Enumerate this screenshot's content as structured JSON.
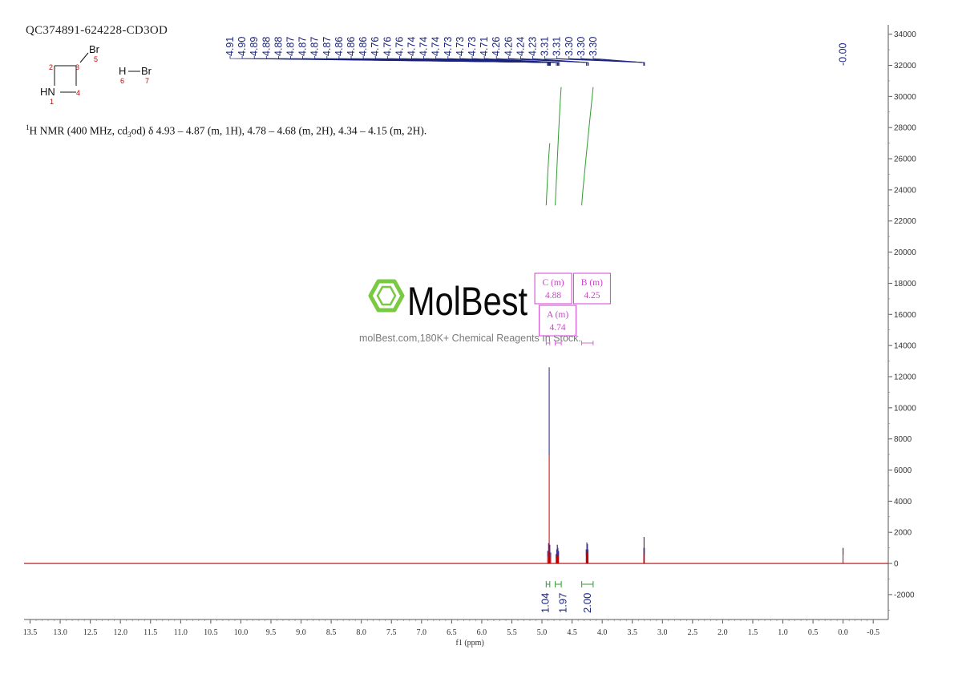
{
  "sample_id": "QC374891-624228-CD3OD",
  "nmr_summary": {
    "prefix_sup": "1",
    "prefix": "H NMR (400 MHz, cd",
    "solvent_sub": "3",
    "body": "od) δ 4.93 – 4.87 (m, 1H), 4.78 – 4.68 (m, 2H), 4.34 – 4.15 (m, 2H)."
  },
  "structure": {
    "atoms": [
      {
        "symbol": "HN",
        "number": "1"
      },
      {
        "symbol": "",
        "number": "2"
      },
      {
        "symbol": "",
        "number": "3"
      },
      {
        "symbol": "",
        "number": "4"
      },
      {
        "symbol": "Br",
        "number": "5"
      },
      {
        "symbol": "H",
        "number": "6"
      },
      {
        "symbol": "Br",
        "number": "7"
      }
    ]
  },
  "watermark": {
    "brand": "MolBest",
    "tagline": "molBest.com,180K+ Chemical Reagents In Stock."
  },
  "colors": {
    "spectrum": "#c00000",
    "peak_labels": "#1a237e",
    "integral": "#2e9d2e",
    "multiplet_box": "#d040d0",
    "logo_green": "#7ac943"
  },
  "chart_data": {
    "type": "line",
    "xlabel": "f1 (ppm)",
    "x_reversed": true,
    "xlim": [
      13.6,
      -0.75
    ],
    "ylim": [
      -3600,
      34600
    ],
    "x_ticks": [
      "13.5",
      "13.0",
      "12.5",
      "12.0",
      "11.5",
      "11.0",
      "10.5",
      "10.0",
      "9.5",
      "9.0",
      "8.5",
      "8.0",
      "7.5",
      "7.0",
      "6.5",
      "6.0",
      "5.5",
      "5.0",
      "4.5",
      "4.0",
      "3.5",
      "3.0",
      "2.5",
      "2.0",
      "1.5",
      "1.0",
      "0.5",
      "0.0",
      "-0.5"
    ],
    "y_ticks": [
      "34000",
      "32000",
      "30000",
      "28000",
      "26000",
      "24000",
      "22000",
      "20000",
      "18000",
      "16000",
      "14000",
      "12000",
      "10000",
      "8000",
      "6000",
      "4000",
      "2000",
      "0",
      "-2000"
    ],
    "peaks": [
      {
        "ppm": 4.905,
        "intensity": 800
      },
      {
        "ppm": 4.89,
        "intensity": 1300
      },
      {
        "ppm": 4.88,
        "intensity": 12600
      },
      {
        "ppm": 4.87,
        "intensity": 1200
      },
      {
        "ppm": 4.855,
        "intensity": 700
      },
      {
        "ppm": 4.765,
        "intensity": 600
      },
      {
        "ppm": 4.755,
        "intensity": 900
      },
      {
        "ppm": 4.745,
        "intensity": 1200
      },
      {
        "ppm": 4.735,
        "intensity": 1000
      },
      {
        "ppm": 4.725,
        "intensity": 800
      },
      {
        "ppm": 4.265,
        "intensity": 900
      },
      {
        "ppm": 4.255,
        "intensity": 1350
      },
      {
        "ppm": 4.245,
        "intensity": 1250
      },
      {
        "ppm": 4.235,
        "intensity": 900
      },
      {
        "ppm": 3.31,
        "intensity": 1000
      },
      {
        "ppm": 3.305,
        "intensity": 1700
      },
      {
        "ppm": 3.3,
        "intensity": 1000
      },
      {
        "ppm": 0.0,
        "intensity": 1000
      }
    ],
    "peak_labels": [
      "4.91",
      "4.90",
      "4.89",
      "4.88",
      "4.88",
      "4.87",
      "4.87",
      "4.87",
      "4.87",
      "4.86",
      "4.86",
      "4.86",
      "4.76",
      "4.76",
      "4.76",
      "4.74",
      "4.74",
      "4.74",
      "4.73",
      "4.73",
      "4.73",
      "4.71",
      "4.26",
      "4.26",
      "4.24",
      "4.23",
      "3.31",
      "3.31",
      "3.30",
      "3.30",
      "3.30",
      "-0.00"
    ],
    "multiplets": [
      {
        "label": "C (m)",
        "shift": "4.88",
        "range": [
          4.93,
          4.87
        ]
      },
      {
        "label": "A (m)",
        "shift": "4.74",
        "range": [
          4.78,
          4.68
        ]
      },
      {
        "label": "B (m)",
        "shift": "4.25",
        "range": [
          4.34,
          4.15
        ]
      }
    ],
    "integrals": [
      {
        "value": "1.04",
        "range": [
          4.93,
          4.87
        ],
        "y_start": 23000,
        "y_end": 27000
      },
      {
        "value": "1.97",
        "range": [
          4.78,
          4.68
        ],
        "y_start": 23000,
        "y_end": 30600
      },
      {
        "value": "2.00",
        "range": [
          4.34,
          4.15
        ],
        "y_start": 23000,
        "y_end": 30600
      }
    ]
  }
}
